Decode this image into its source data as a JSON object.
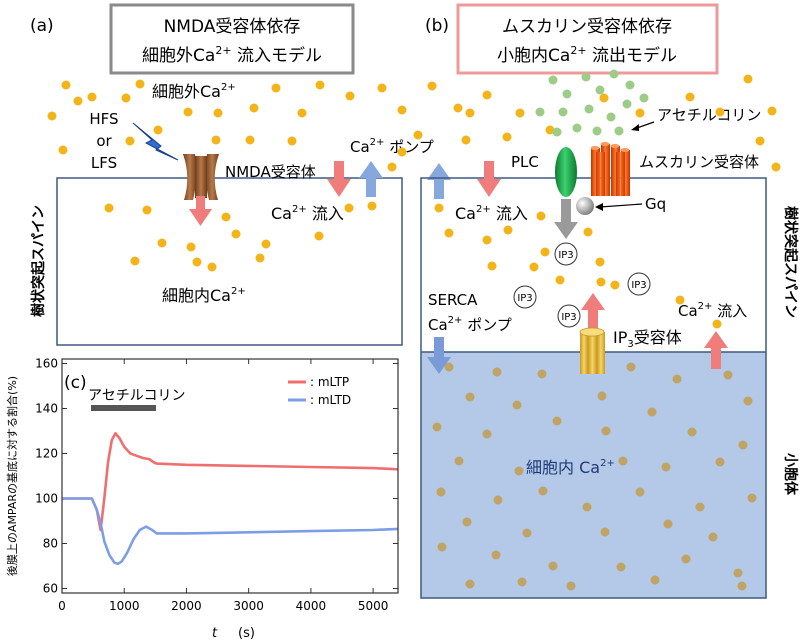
{
  "panel_a": {
    "label": "(a)",
    "title_line1": "NMDA受容体依存",
    "title_line2": "細胞外Ca",
    "title_line2_sup": "2+",
    "title_line2_rest": " 流入モデル",
    "extracellular": "細胞外Ca",
    "extracellular_sup": "2+",
    "stimulus": [
      "HFS",
      "or",
      "LFS"
    ],
    "nmda_label": "NMDA受容体",
    "pump_ca": "Ca",
    "pump_sup": "2+",
    "pump_rest": " ポンプ",
    "influx_ca": "Ca",
    "influx_sup": "2+",
    "influx_rest": " 流入",
    "intracellular": "細胞内Ca",
    "intracellular_sup": "2+",
    "spine_label": "樹状突起スパイン"
  },
  "panel_b": {
    "label": "(b)",
    "title_line1": "ムスカリン受容体依存",
    "title_line2": "小胞内Ca",
    "title_line2_sup": "2+",
    "title_line2_rest": " 流出モデル",
    "acetylcholine": "アセチルコリン",
    "plc": "PLC",
    "muscarinic": "ムスカリン受容体",
    "gq": "Gq",
    "influx_ca": "Ca",
    "influx_sup": "2+",
    "influx_rest": " 流入",
    "ip3": "IP3",
    "serca": "SERCA",
    "serca_pump_ca": "Ca",
    "serca_pump_sup": "2+",
    "serca_pump_rest": " ポンプ",
    "ip3r_pre": "IP",
    "ip3r_sub": "3",
    "ip3r_rest": "受容体",
    "right_influx_ca": "Ca",
    "right_influx_sup": "2+",
    "right_influx_rest": " 流入",
    "er_intracellular": "細胞内 Ca",
    "er_intracellular_sup": "2+",
    "spine_label": "樹状突起スパイン",
    "er_label": "小胞体"
  },
  "colors": {
    "ca_dot": "#f2b418",
    "ach_dot": "#9ccc86",
    "er_fill": "#b4c8e8",
    "er_dot": "#bfa466",
    "red_arrow": "#f07c7c",
    "blue_arrow": "#86a8dc",
    "mltp": "#ef6f6f",
    "mltd": "#7c9ee6",
    "box_a": "#8a8a8a",
    "box_b": "#ef9a9a"
  },
  "chart_data": {
    "type": "line",
    "panel_label": "(c)",
    "annotation": "アセチルコリン",
    "annotation_range": [
      500,
      1500
    ],
    "xlabel_var": "t",
    "xlabel_unit": "(s)",
    "ylabel": "後膜上のAMPARの基底に対する割合(%)",
    "xlim": [
      0,
      5400
    ],
    "ylim": [
      58,
      162
    ],
    "xticks": [
      0,
      1000,
      2000,
      3000,
      4000,
      5000
    ],
    "yticks": [
      60,
      80,
      100,
      120,
      140,
      160
    ],
    "series": [
      {
        "name": ": mLTP",
        "x": [
          0,
          480,
          560,
          620,
          680,
          740,
          800,
          860,
          920,
          1000,
          1100,
          1200,
          1300,
          1400,
          1480,
          1520,
          2000,
          3000,
          4000,
          5000,
          5400
        ],
        "y": [
          100,
          100,
          95,
          86,
          100,
          116,
          126,
          129,
          127,
          123,
          120,
          119,
          118,
          117.5,
          116,
          115.5,
          115,
          114.5,
          114,
          113.5,
          113
        ]
      },
      {
        "name": ": mLTD",
        "x": [
          0,
          480,
          560,
          620,
          680,
          760,
          840,
          900,
          960,
          1050,
          1150,
          1250,
          1350,
          1450,
          1520,
          2000,
          3000,
          4000,
          5000,
          5400
        ],
        "y": [
          100,
          100,
          95,
          89,
          81,
          75,
          71.5,
          71,
          72,
          76,
          82,
          86,
          87.5,
          86,
          84.5,
          84.5,
          85,
          85.5,
          86,
          86.5
        ]
      }
    ]
  }
}
